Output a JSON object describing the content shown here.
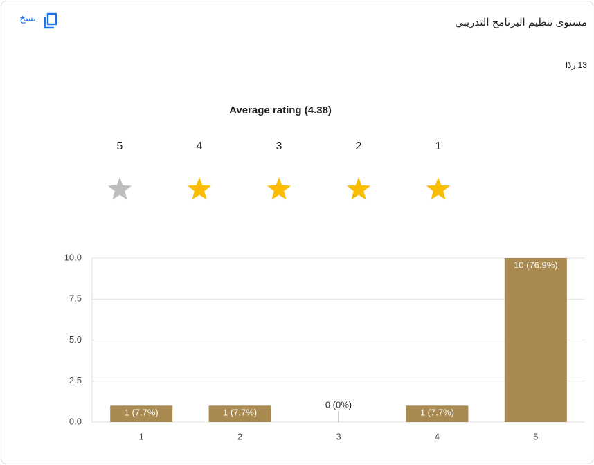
{
  "header": {
    "title": "مستوى تنظيم البرنامج التدريبي",
    "responses": "13 ردًا",
    "copy": "نسخ"
  },
  "stars": {
    "labels": [
      5,
      4,
      3,
      2,
      1
    ],
    "colors": [
      "#bdbdbd",
      "#fbbc04",
      "#fbbc04",
      "#fbbc04",
      "#fbbc04"
    ]
  },
  "chart_data": {
    "type": "bar",
    "title": "Average rating (4.38)",
    "categories": [
      "1",
      "2",
      "3",
      "4",
      "5"
    ],
    "values": [
      1,
      1,
      0,
      1,
      10
    ],
    "value_labels": [
      "1 (7.7%)",
      "1 (7.7%)",
      "0 (0%)",
      "1 (7.7%)",
      "10 (76.9%)"
    ],
    "color": "#a8894f",
    "ylim": [
      0,
      10
    ],
    "yticks": [
      {
        "value": 0,
        "label": "0.0"
      },
      2.5,
      {
        "value": 5,
        "label": "5.0"
      },
      7.5,
      {
        "value": 10,
        "label": "10.0"
      }
    ],
    "grid": true
  }
}
